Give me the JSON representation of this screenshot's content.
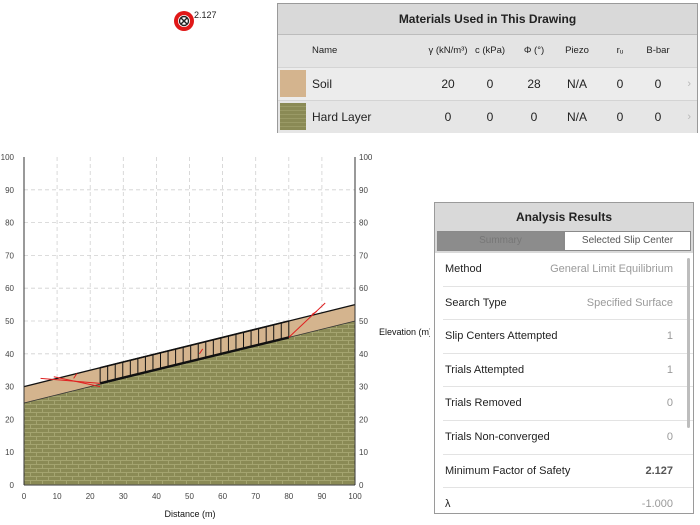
{
  "marker": {
    "fos_label": "2.127"
  },
  "materials": {
    "title": "Materials Used in This Drawing",
    "headers": {
      "name": "Name",
      "gamma": "γ (kN/m³)",
      "c": "c (kPa)",
      "phi": "Φ (°)",
      "piezo": "Piezo",
      "ru": "rᵤ",
      "bbar": "B-bar"
    },
    "rows": [
      {
        "name": "Soil",
        "gamma": "20",
        "c": "0",
        "phi": "28",
        "piezo": "N/A",
        "ru": "0",
        "bbar": "0",
        "color": "#d4b48e"
      },
      {
        "name": "Hard Layer",
        "gamma": "0",
        "c": "0",
        "phi": "0",
        "piezo": "N/A",
        "ru": "0",
        "bbar": "0",
        "color": "#8a8a55"
      }
    ]
  },
  "chart": {
    "x_title": "Distance (m)",
    "y_right_title": "Elevation (m)",
    "x_ticks": [
      "0",
      "10",
      "20",
      "30",
      "40",
      "50",
      "60",
      "70",
      "80",
      "90",
      "100"
    ],
    "y_ticks": [
      "0",
      "10",
      "20",
      "30",
      "40",
      "50",
      "60",
      "70",
      "80",
      "90",
      "100"
    ]
  },
  "chart_data": {
    "type": "area",
    "xlim": [
      0,
      100
    ],
    "ylim": [
      0,
      100
    ],
    "grid": true,
    "soil_surface": [
      [
        0,
        30
      ],
      [
        100,
        55
      ]
    ],
    "hard_layer_surface": [
      [
        0,
        25
      ],
      [
        100,
        50
      ]
    ],
    "slip_surface": [
      [
        23,
        31
      ],
      [
        80,
        45
      ],
      [
        89,
        53
      ]
    ],
    "slice_top": [
      [
        23,
        35.75
      ],
      [
        80,
        50
      ]
    ]
  },
  "analysis": {
    "title": "Analysis Results",
    "tabs": [
      "Summary",
      "Selected Slip Center"
    ],
    "items": [
      {
        "label": "Method",
        "value": "General Limit Equilibrium"
      },
      {
        "label": "Search Type",
        "value": "Specified Surface"
      },
      {
        "label": "Slip Centers Attempted",
        "value": "1"
      },
      {
        "label": "Trials Attempted",
        "value": "1"
      },
      {
        "label": "Trials Removed",
        "value": "0"
      },
      {
        "label": "Trials Non-converged",
        "value": "0"
      },
      {
        "label": "Minimum Factor of Safety",
        "value": "2.127"
      },
      {
        "label": "λ",
        "value": "-1.000"
      }
    ]
  }
}
